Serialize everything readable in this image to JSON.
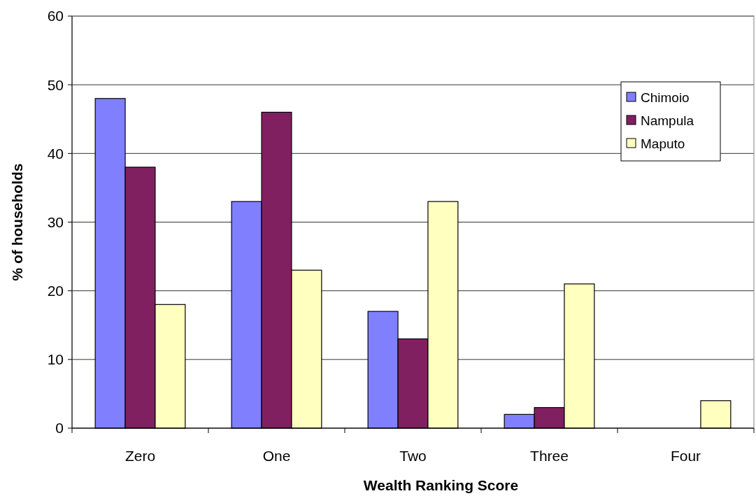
{
  "chart_data": {
    "type": "bar",
    "xlabel": "Wealth Ranking Score",
    "ylabel": "% of households",
    "categories": [
      "Zero",
      "One",
      "Two",
      "Three",
      "Four"
    ],
    "series": [
      {
        "name": "Chimoio",
        "color": "#8080ff",
        "values": [
          48,
          33,
          17,
          2,
          0
        ]
      },
      {
        "name": "Nampula",
        "color": "#802060",
        "values": [
          38,
          46,
          13,
          3,
          0
        ]
      },
      {
        "name": "Maputo",
        "color": "#ffffc0",
        "values": [
          18,
          23,
          33,
          21,
          4
        ]
      }
    ],
    "ylim": [
      0,
      60
    ],
    "yticks": [
      0,
      10,
      20,
      30,
      40,
      50,
      60
    ],
    "grid": "y",
    "legend": "top right"
  }
}
